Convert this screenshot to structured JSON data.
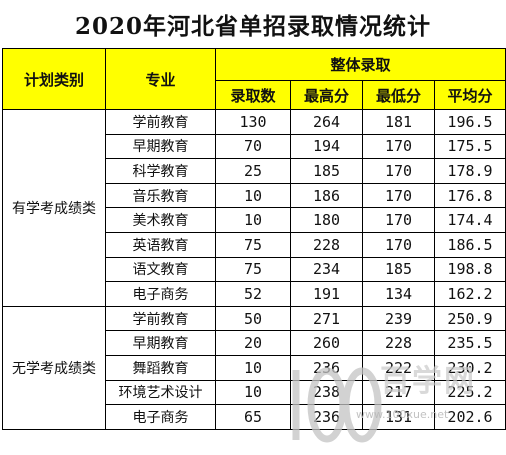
{
  "title": "2020年河北省单招录取情况统计",
  "headers": {
    "category": "计划类别",
    "major": "专业",
    "overall": "整体录取",
    "admitted": "录取数",
    "highest": "最高分",
    "lowest": "最低分",
    "average": "平均分"
  },
  "groups": [
    {
      "category": "有学考成绩类",
      "rows": [
        {
          "major": "学前教育",
          "admitted": "130",
          "highest": "264",
          "lowest": "181",
          "average": "196.5"
        },
        {
          "major": "早期教育",
          "admitted": "70",
          "highest": "194",
          "lowest": "170",
          "average": "175.5"
        },
        {
          "major": "科学教育",
          "admitted": "25",
          "highest": "185",
          "lowest": "170",
          "average": "178.9"
        },
        {
          "major": "音乐教育",
          "admitted": "10",
          "highest": "186",
          "lowest": "170",
          "average": "176.8"
        },
        {
          "major": "美术教育",
          "admitted": "10",
          "highest": "180",
          "lowest": "170",
          "average": "174.4"
        },
        {
          "major": "英语教育",
          "admitted": "75",
          "highest": "228",
          "lowest": "170",
          "average": "186.5"
        },
        {
          "major": "语文教育",
          "admitted": "75",
          "highest": "234",
          "lowest": "185",
          "average": "198.8"
        },
        {
          "major": "电子商务",
          "admitted": "52",
          "highest": "191",
          "lowest": "134",
          "average": "162.2"
        }
      ]
    },
    {
      "category": "无学考成绩类",
      "rows": [
        {
          "major": "学前教育",
          "admitted": "50",
          "highest": "271",
          "lowest": "239",
          "average": "250.9"
        },
        {
          "major": "早期教育",
          "admitted": "20",
          "highest": "260",
          "lowest": "228",
          "average": "235.5"
        },
        {
          "major": "舞蹈教育",
          "admitted": "10",
          "highest": "236",
          "lowest": "222",
          "average": "230.2"
        },
        {
          "major": "环境艺术设计",
          "admitted": "10",
          "highest": "238",
          "lowest": "217",
          "average": "225.2"
        },
        {
          "major": "电子商务",
          "admitted": "65",
          "highest": "236",
          "lowest": "131",
          "average": "202.6"
        }
      ]
    }
  ],
  "watermark": {
    "logo_digits": "100",
    "logo_cn": "百学网",
    "site": "www.100xue.net",
    "color": "#bdbdbd"
  }
}
